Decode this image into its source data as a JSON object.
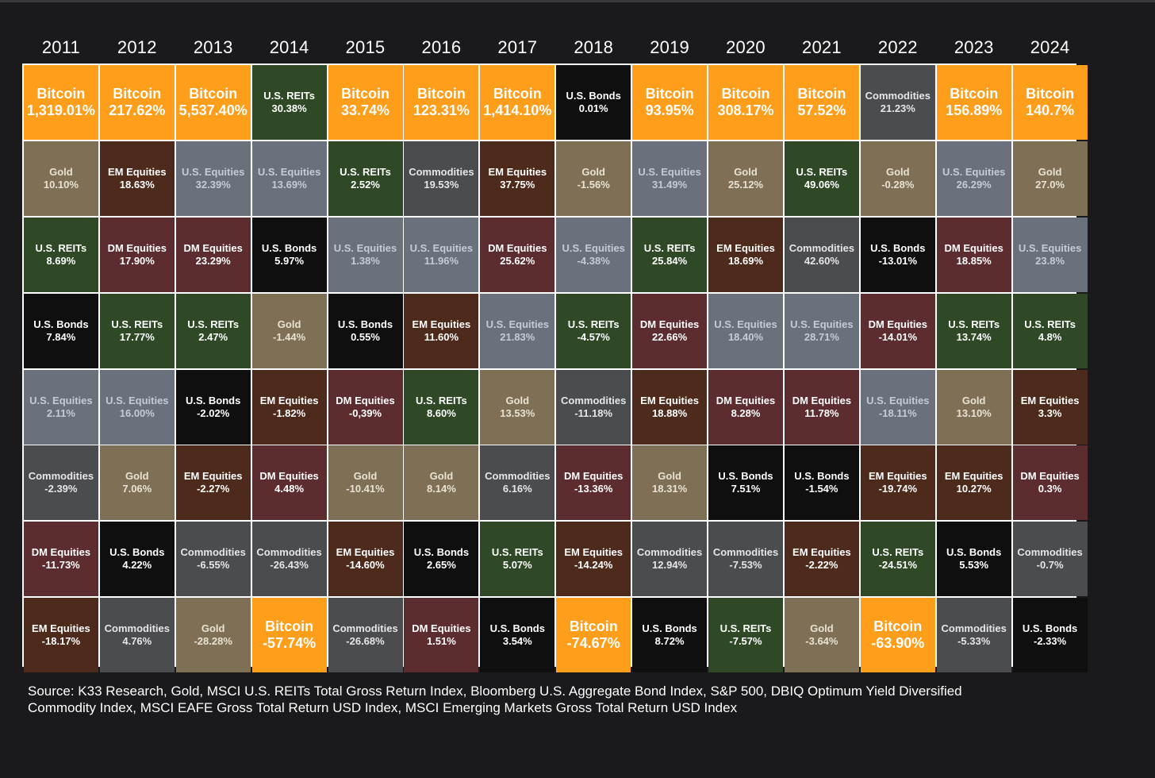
{
  "chart_data": {
    "type": "table",
    "years": [
      "2011",
      "2012",
      "2013",
      "2014",
      "2015",
      "2016",
      "2017",
      "2018",
      "2019",
      "2020",
      "2021",
      "2022",
      "2023",
      "2024"
    ],
    "colors": {
      "Bitcoin": "#ff9e1b",
      "Gold": "#7f7055",
      "U.S. REITs": "#2f4826",
      "U.S. Bonds": "#0f0f10",
      "U.S. Equities": "#6a717d",
      "Commodities": "#4b4c50",
      "DM Equities": "#5c2c2e",
      "EM Equities": "#4d2a1b"
    },
    "columns": [
      [
        {
          "asset": "Bitcoin",
          "value": "1,319.01%"
        },
        {
          "asset": "Gold",
          "value": "10.10%"
        },
        {
          "asset": "U.S. REITs",
          "value": "8.69%"
        },
        {
          "asset": "U.S. Bonds",
          "value": "7.84%"
        },
        {
          "asset": "U.S. Equities",
          "value": "2.11%"
        },
        {
          "asset": "Commodities",
          "value": "-2.39%"
        },
        {
          "asset": "DM Equities",
          "value": "-11.73%"
        },
        {
          "asset": "EM Equities",
          "value": "-18.17%"
        }
      ],
      [
        {
          "asset": "Bitcoin",
          "value": "217.62%"
        },
        {
          "asset": "EM Equities",
          "value": "18.63%"
        },
        {
          "asset": "DM Equities",
          "value": "17.90%"
        },
        {
          "asset": "U.S. REITs",
          "value": "17.77%"
        },
        {
          "asset": "U.S. Equities",
          "value": "16.00%"
        },
        {
          "asset": "Gold",
          "value": "7.06%"
        },
        {
          "asset": "U.S. Bonds",
          "value": "4.22%"
        },
        {
          "asset": "Commodities",
          "value": "4.76%"
        }
      ],
      [
        {
          "asset": "Bitcoin",
          "value": "5,537.40%"
        },
        {
          "asset": "U.S. Equities",
          "value": "32.39%"
        },
        {
          "asset": "DM Equities",
          "value": "23.29%"
        },
        {
          "asset": "U.S. REITs",
          "value": "2.47%"
        },
        {
          "asset": "U.S. Bonds",
          "value": "-2.02%"
        },
        {
          "asset": "EM Equities",
          "value": "-2.27%"
        },
        {
          "asset": "Commodities",
          "value": "-6.55%"
        },
        {
          "asset": "Gold",
          "value": "-28.28%"
        }
      ],
      [
        {
          "asset": "U.S. REITs",
          "value": "30.38%"
        },
        {
          "asset": "U.S. Equities",
          "value": "13.69%"
        },
        {
          "asset": "U.S. Bonds",
          "value": "5.97%"
        },
        {
          "asset": "Gold",
          "value": "-1.44%"
        },
        {
          "asset": "EM Equities",
          "value": "-1.82%"
        },
        {
          "asset": "DM Equities",
          "value": "4.48%"
        },
        {
          "asset": "Commodities",
          "value": "-26.43%"
        },
        {
          "asset": "Bitcoin",
          "value": "-57.74%"
        }
      ],
      [
        {
          "asset": "Bitcoin",
          "value": "33.74%"
        },
        {
          "asset": "U.S. REITs",
          "value": "2.52%"
        },
        {
          "asset": "U.S. Equities",
          "value": "1.38%"
        },
        {
          "asset": "U.S. Bonds",
          "value": "0.55%"
        },
        {
          "asset": "DM Equities",
          "value": "-0,39%"
        },
        {
          "asset": "Gold",
          "value": "-10.41%"
        },
        {
          "asset": "EM Equities",
          "value": "-14.60%"
        },
        {
          "asset": "Commodities",
          "value": "-26.68%"
        }
      ],
      [
        {
          "asset": "Bitcoin",
          "value": "123.31%"
        },
        {
          "asset": "Commodities",
          "value": "19.53%"
        },
        {
          "asset": "U.S. Equities",
          "value": "11.96%"
        },
        {
          "asset": "EM Equities",
          "value": "11.60%"
        },
        {
          "asset": "U.S. REITs",
          "value": "8.60%"
        },
        {
          "asset": "Gold",
          "value": "8.14%"
        },
        {
          "asset": "U.S. Bonds",
          "value": "2.65%"
        },
        {
          "asset": "DM Equities",
          "value": "1.51%"
        }
      ],
      [
        {
          "asset": "Bitcoin",
          "value": "1,414.10%"
        },
        {
          "asset": "EM Equities",
          "value": "37.75%"
        },
        {
          "asset": "DM Equities",
          "value": "25.62%"
        },
        {
          "asset": "U.S. Equities",
          "value": "21.83%"
        },
        {
          "asset": "Gold",
          "value": "13.53%"
        },
        {
          "asset": "Commodities",
          "value": "6.16%"
        },
        {
          "asset": "U.S. REITs",
          "value": "5.07%"
        },
        {
          "asset": "U.S. Bonds",
          "value": "3.54%"
        }
      ],
      [
        {
          "asset": "U.S. Bonds",
          "value": "0.01%"
        },
        {
          "asset": "Gold",
          "value": "-1.56%"
        },
        {
          "asset": "U.S. Equities",
          "value": "-4.38%"
        },
        {
          "asset": "U.S. REITs",
          "value": "-4.57%"
        },
        {
          "asset": "Commodities",
          "value": "-11.18%"
        },
        {
          "asset": "DM Equities",
          "value": "-13.36%"
        },
        {
          "asset": "EM Equities",
          "value": "-14.24%"
        },
        {
          "asset": "Bitcoin",
          "value": "-74.67%"
        }
      ],
      [
        {
          "asset": "Bitcoin",
          "value": "93.95%"
        },
        {
          "asset": "U.S. Equities",
          "value": "31.49%"
        },
        {
          "asset": "U.S. REITs",
          "value": "25.84%"
        },
        {
          "asset": "DM Equities",
          "value": "22.66%"
        },
        {
          "asset": "EM Equities",
          "value": "18.88%"
        },
        {
          "asset": "Gold",
          "value": "18.31%"
        },
        {
          "asset": "Commodities",
          "value": "12.94%"
        },
        {
          "asset": "U.S. Bonds",
          "value": "8.72%"
        }
      ],
      [
        {
          "asset": "Bitcoin",
          "value": "308.17%"
        },
        {
          "asset": "Gold",
          "value": "25.12%"
        },
        {
          "asset": "EM Equities",
          "value": "18.69%"
        },
        {
          "asset": "U.S. Equities",
          "value": "18.40%"
        },
        {
          "asset": "DM Equities",
          "value": "8.28%"
        },
        {
          "asset": "U.S. Bonds",
          "value": "7.51%"
        },
        {
          "asset": "Commodities",
          "value": "-7.53%"
        },
        {
          "asset": "U.S. REITs",
          "value": "-7.57%"
        }
      ],
      [
        {
          "asset": "Bitcoin",
          "value": "57.52%"
        },
        {
          "asset": "U.S. REITs",
          "value": "49.06%"
        },
        {
          "asset": "Commodities",
          "value": "42.60%"
        },
        {
          "asset": "U.S. Equities",
          "value": "28.71%"
        },
        {
          "asset": "DM Equities",
          "value": "11.78%"
        },
        {
          "asset": "U.S. Bonds",
          "value": "-1.54%"
        },
        {
          "asset": "EM Equities",
          "value": "-2.22%"
        },
        {
          "asset": "Gold",
          "value": "-3.64%"
        }
      ],
      [
        {
          "asset": "Commodities",
          "value": "21.23%"
        },
        {
          "asset": "Gold",
          "value": "-0.28%"
        },
        {
          "asset": "U.S. Bonds",
          "value": "-13.01%"
        },
        {
          "asset": "DM Equities",
          "value": "-14.01%"
        },
        {
          "asset": "U.S. Equities",
          "value": "-18.11%"
        },
        {
          "asset": "EM Equities",
          "value": "-19.74%"
        },
        {
          "asset": "U.S. REITs",
          "value": "-24.51%"
        },
        {
          "asset": "Bitcoin",
          "value": "-63.90%"
        }
      ],
      [
        {
          "asset": "Bitcoin",
          "value": "156.89%"
        },
        {
          "asset": "U.S. Equities",
          "value": "26.29%"
        },
        {
          "asset": "DM Equities",
          "value": "18.85%"
        },
        {
          "asset": "U.S. REITs",
          "value": "13.74%"
        },
        {
          "asset": "Gold",
          "value": "13.10%"
        },
        {
          "asset": "EM Equities",
          "value": "10.27%"
        },
        {
          "asset": "U.S. Bonds",
          "value": "5.53%"
        },
        {
          "asset": "Commodities",
          "value": "-5.33%"
        }
      ],
      [
        {
          "asset": "Bitcoin",
          "value": "140.7%"
        },
        {
          "asset": "Gold",
          "value": "27.0%"
        },
        {
          "asset": "U.S. Equities",
          "value": "23.8%"
        },
        {
          "asset": "U.S. REITs",
          "value": "4.8%"
        },
        {
          "asset": "EM Equities",
          "value": "3.3%"
        },
        {
          "asset": "DM Equities",
          "value": "0.3%"
        },
        {
          "asset": "Commodities",
          "value": "-0.7%"
        },
        {
          "asset": "U.S. Bonds",
          "value": "-2.33%"
        }
      ]
    ]
  },
  "source_text": "Source: K33 Research, Gold, MSCI U.S. REITs Total Gross Return Index, Bloomberg U.S. Aggregate Bond Index, S&P 500, DBIQ Optimum Yield Diversified Commodity Index, MSCI EAFE Gross Total Return USD Index, MSCI Emerging Markets Gross Total Return USD Index"
}
